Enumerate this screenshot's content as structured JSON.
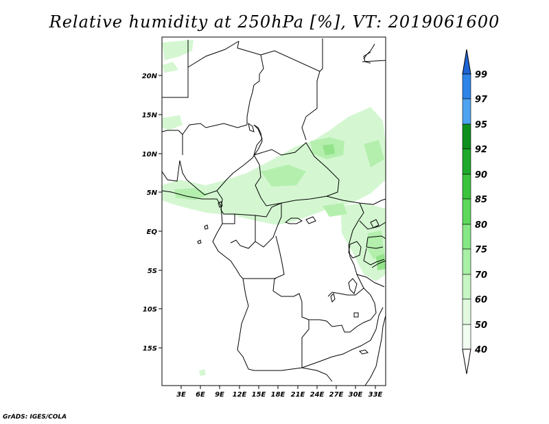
{
  "title": "Relative humidity at 250hPa [%], VT: 2019061600",
  "credit": "GrADS: IGES/COLA",
  "map": {
    "lat_labels": [
      "20N",
      "15N",
      "10N",
      "5N",
      "EQ",
      "5S",
      "10S",
      "15S"
    ],
    "lon_labels": [
      "3E",
      "6E",
      "9E",
      "12E",
      "15E",
      "18E",
      "21E",
      "24E",
      "27E",
      "30E",
      "33E"
    ]
  },
  "colorbar": {
    "levels": [
      "99",
      "97",
      "95",
      "92",
      "90",
      "85",
      "80",
      "75",
      "70",
      "60",
      "50",
      "40"
    ],
    "colors": [
      "#1f64d4",
      "#2f84e8",
      "#4ea3f0",
      "#0f8f1e",
      "#1fa82c",
      "#3cc33e",
      "#5dd85c",
      "#85e785",
      "#a7f0a4",
      "#c7f6c4",
      "#e1fadf",
      "#f1fdf0"
    ]
  },
  "field_colors": {
    "light": "#d4f7d1",
    "medium": "#b4efae",
    "strong": "#93e38b"
  }
}
